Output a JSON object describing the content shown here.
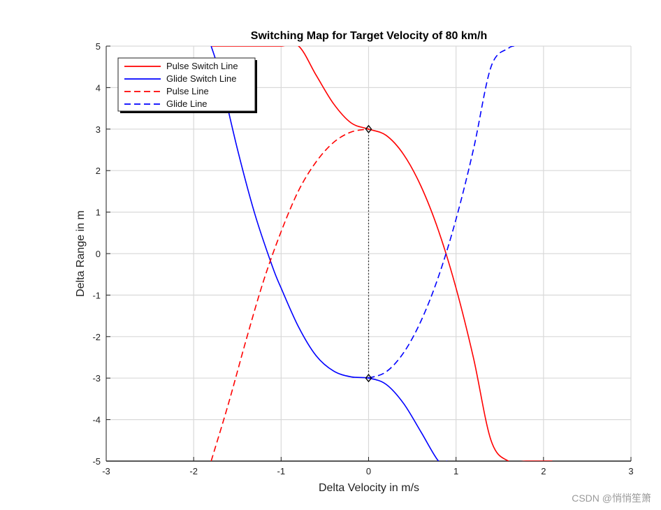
{
  "chart_data": {
    "type": "line",
    "title": "Switching Map for Target Velocity of 80 km/h",
    "xlabel": "Delta Velocity in m/s",
    "ylabel": "Delta Range in m",
    "xlim": [
      -3,
      3
    ],
    "ylim": [
      -5,
      5
    ],
    "xticks": [
      -3,
      -2,
      -1,
      0,
      1,
      2,
      3
    ],
    "yticks": [
      -5,
      -4,
      -3,
      -2,
      -1,
      0,
      1,
      2,
      3,
      4,
      5
    ],
    "grid": true,
    "legend_position": "top-left",
    "series": [
      {
        "name": "Pulse Switch Line",
        "color": "#ff0000",
        "style": "solid",
        "x": [
          -1.8,
          -1.5,
          -1.2,
          -1.0,
          -0.8,
          -0.6,
          -0.4,
          -0.2,
          0.0,
          0.2,
          0.4,
          0.6,
          0.8,
          1.0,
          1.2,
          1.4,
          1.6,
          1.8,
          2.1
        ],
        "y": [
          5.0,
          5.0,
          5.0,
          5.0,
          5.0,
          4.3,
          3.61,
          3.15,
          3.0,
          2.85,
          2.39,
          1.62,
          0.55,
          -0.83,
          -2.52,
          -4.5,
          -5.0,
          -5.0,
          -5.0
        ]
      },
      {
        "name": "Glide Switch Line",
        "color": "#0000ff",
        "style": "solid",
        "x": [
          -1.8,
          -1.7,
          -1.5,
          -1.3,
          -1.1,
          -1.0,
          -0.8,
          -0.6,
          -0.4,
          -0.2,
          0.0,
          0.2,
          0.4,
          0.6,
          0.8,
          0.9
        ],
        "y": [
          5.0,
          4.31,
          2.52,
          0.95,
          -0.31,
          -0.83,
          -1.77,
          -2.46,
          -2.83,
          -2.97,
          -3.0,
          -3.15,
          -3.61,
          -4.3,
          -5.0,
          -5.0
        ]
      },
      {
        "name": "Pulse Line",
        "color": "#ff0000",
        "style": "dashed",
        "x": [
          -1.8,
          -1.6,
          -1.4,
          -1.2,
          -1.0,
          -0.8,
          -0.6,
          -0.4,
          -0.2,
          0.0
        ],
        "y": [
          -5.0,
          -3.6,
          -2.08,
          -0.65,
          0.53,
          1.52,
          2.21,
          2.68,
          2.93,
          3.0
        ]
      },
      {
        "name": "Glide Line",
        "color": "#0000ff",
        "style": "dashed",
        "x": [
          0.0,
          0.2,
          0.4,
          0.6,
          0.8,
          1.0,
          1.2,
          1.4,
          1.6,
          1.7
        ],
        "y": [
          -3.0,
          -2.85,
          -2.39,
          -1.62,
          -0.55,
          0.83,
          2.52,
          4.5,
          4.95,
          5.0
        ]
      }
    ],
    "markers": [
      {
        "x": 0.0,
        "y": 3.0,
        "shape": "diamond"
      },
      {
        "x": 0.0,
        "y": -3.0,
        "shape": "diamond"
      }
    ],
    "reference_line": {
      "x": 0.0,
      "y_from": -3.0,
      "y_to": 3.0,
      "style": "dotted",
      "color": "#000000"
    }
  },
  "watermark": "CSDN @悄悄笙箫"
}
